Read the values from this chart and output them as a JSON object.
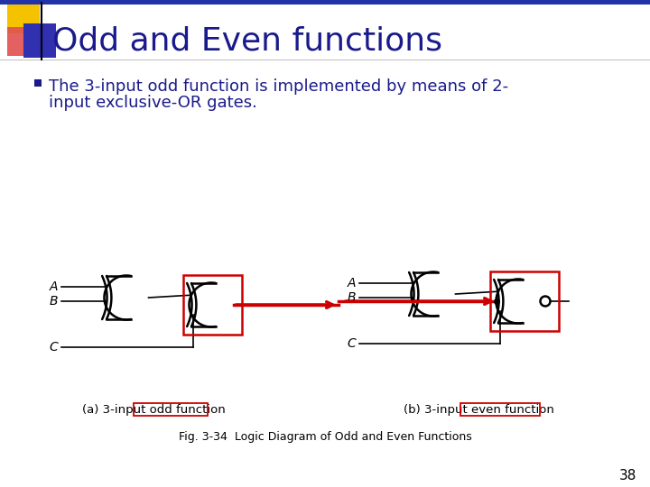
{
  "title": "Odd and Even functions",
  "title_color": "#1a1a8c",
  "title_fontsize": 26,
  "bullet_text_line1": "The 3-input odd function is implemented by means of 2-",
  "bullet_text_line2": "input exclusive-OR gates.",
  "bullet_color": "#1a1a8c",
  "bullet_fontsize": 13,
  "fig_caption": "Fig. 3-34  Logic Diagram of Odd and Even Functions",
  "caption_a": "(a) 3-input odd function",
  "caption_b": "(b) 3-input even function",
  "red_line_color": "#cc0000",
  "box_color": "#cc0000",
  "bg_color": "#ffffff",
  "slide_number": "38",
  "header_blue": "#2233aa",
  "header_yellow": "#f5c200",
  "header_red": "#e05050",
  "header_dark_blue": "#3030b0"
}
